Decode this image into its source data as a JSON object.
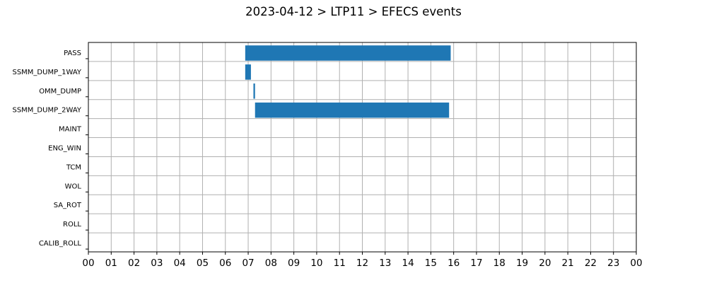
{
  "chart_data": {
    "type": "bar",
    "orientation": "horizontal",
    "title": "2023-04-12 > LTP11 > EFECS events",
    "xlabel": "",
    "ylabel": "",
    "categories": [
      "PASS",
      "SSMM_DUMP_1WAY",
      "OMM_DUMP",
      "SSMM_DUMP_2WAY",
      "MAINT",
      "ENG_WIN",
      "TCM",
      "WOL",
      "SA_ROT",
      "ROLL",
      "CALIB_ROLL"
    ],
    "x_ticks": [
      "00",
      "01",
      "02",
      "03",
      "04",
      "05",
      "06",
      "07",
      "08",
      "09",
      "10",
      "11",
      "12",
      "13",
      "14",
      "15",
      "16",
      "17",
      "18",
      "19",
      "20",
      "21",
      "22",
      "23",
      "00"
    ],
    "xlim": [
      0,
      24
    ],
    "grid": true,
    "bar_color": "#1f77b4",
    "series": [
      {
        "values": [
          {
            "category": "PASS",
            "start": 6.87,
            "end": 15.87
          },
          {
            "category": "SSMM_DUMP_1WAY",
            "start": 6.87,
            "end": 7.12
          },
          {
            "category": "OMM_DUMP",
            "start": 7.23,
            "end": 7.3
          },
          {
            "category": "SSMM_DUMP_2WAY",
            "start": 7.3,
            "end": 15.8
          }
        ]
      }
    ]
  }
}
